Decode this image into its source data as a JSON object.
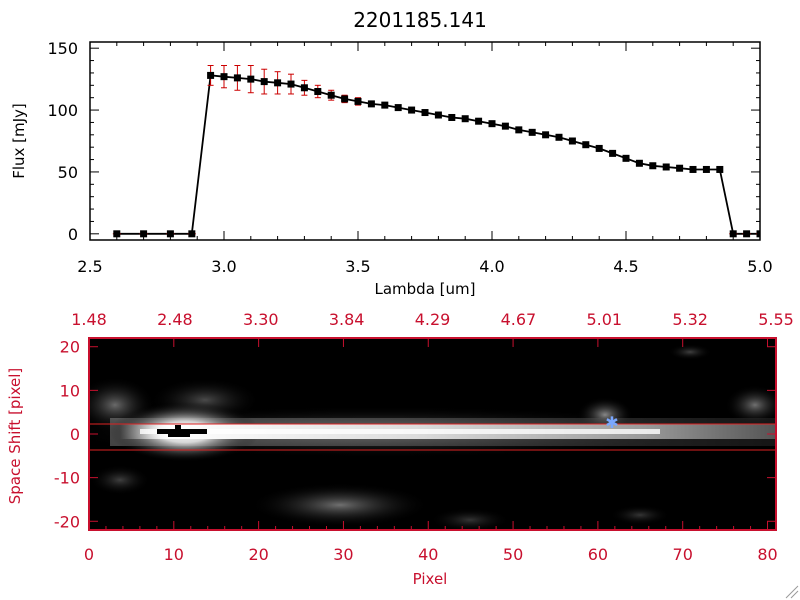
{
  "chart_data": [
    {
      "type": "line",
      "title": "2201185.141",
      "xlabel": "Lambda [um]",
      "ylabel": "Flux [mJy]",
      "xlim": [
        2.5,
        5.0
      ],
      "ylim": [
        -5,
        155
      ],
      "xticks": [
        "2.5",
        "3.0",
        "3.5",
        "4.0",
        "4.5",
        "5.0"
      ],
      "yticks": [
        "0",
        "50",
        "100",
        "150"
      ],
      "x": [
        2.6,
        2.7,
        2.8,
        2.88,
        2.95,
        3.0,
        3.05,
        3.1,
        3.15,
        3.2,
        3.25,
        3.3,
        3.35,
        3.4,
        3.45,
        3.5,
        3.55,
        3.6,
        3.65,
        3.7,
        3.75,
        3.8,
        3.85,
        3.9,
        3.95,
        4.0,
        4.05,
        4.1,
        4.15,
        4.2,
        4.25,
        4.3,
        4.35,
        4.4,
        4.45,
        4.5,
        4.55,
        4.6,
        4.65,
        4.7,
        4.75,
        4.8,
        4.85,
        4.9,
        4.95,
        5.0
      ],
      "y": [
        0,
        0,
        0,
        0,
        128,
        127,
        126,
        125,
        123,
        122,
        121,
        118,
        115,
        112,
        109,
        107,
        105,
        104,
        102,
        100,
        98,
        96,
        94,
        93,
        91,
        89,
        87,
        84,
        82,
        80,
        78,
        75,
        72,
        69,
        65,
        61,
        57,
        55,
        54,
        53,
        52,
        52,
        52,
        0,
        0,
        0
      ],
      "yerr": [
        0,
        0,
        0,
        0,
        8,
        9,
        10,
        11,
        10,
        9,
        8,
        6,
        5,
        4,
        3,
        3,
        2,
        2,
        2,
        2,
        2,
        2,
        2,
        2,
        2,
        2,
        2,
        2,
        2,
        2,
        2,
        2,
        2,
        2,
        2,
        2,
        2,
        2,
        2,
        2,
        2,
        2,
        2,
        0,
        0,
        0
      ],
      "colors": {
        "line": "#000000",
        "markers": "#000000",
        "errorbars": "#cc0000"
      }
    },
    {
      "type": "heatmap",
      "xlabel": "Pixel",
      "ylabel": "Space Shift [pixel]",
      "xlim": [
        0,
        81
      ],
      "ylim": [
        -22,
        22
      ],
      "xticks": [
        "0",
        "10",
        "20",
        "30",
        "40",
        "50",
        "60",
        "70",
        "80"
      ],
      "yticks": [
        "-20",
        "-10",
        "0",
        "10",
        "20"
      ],
      "top_axis_label_values": [
        "1.48",
        "2.48",
        "3.30",
        "3.84",
        "4.29",
        "4.67",
        "5.01",
        "5.32",
        "5.55"
      ],
      "aperture_lines_y": [
        3,
        -3
      ],
      "colors": {
        "axes": "#c8102e",
        "aperture": "#dd2222",
        "marker": "#7aa7ff",
        "colormap": "grayscale"
      }
    }
  ]
}
